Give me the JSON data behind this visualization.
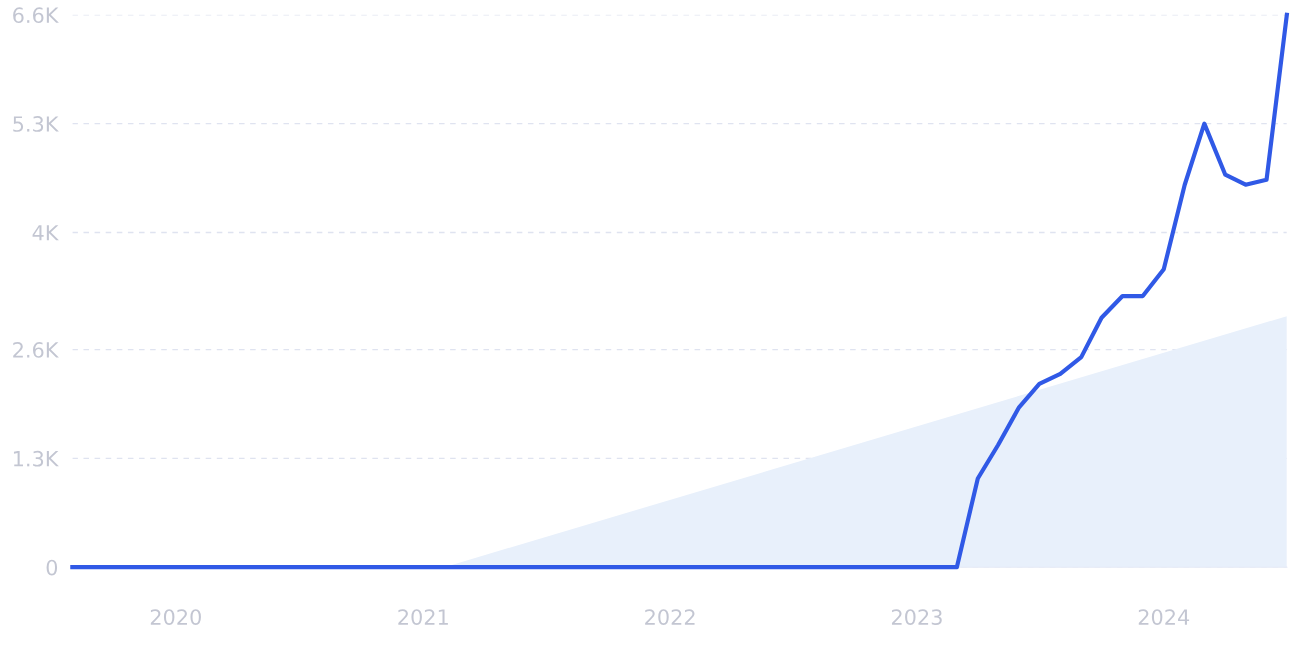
{
  "chart_data": {
    "type": "line",
    "series": [
      {
        "type": "area",
        "color": "#e8f0fb",
        "x": [
          "2021-02",
          "2024-07"
        ],
        "values": [
          0,
          3000
        ]
      },
      {
        "color": "#3059e6",
        "x": [
          "2019-08",
          "2023-03",
          "2023-04",
          "2023-05",
          "2023-06",
          "2023-07",
          "2023-08",
          "2023-09",
          "2023-10",
          "2023-11",
          "2023-12",
          "2024-01",
          "2024-02",
          "2024-03",
          "2024-04",
          "2024-05",
          "2024-06",
          "2024-07"
        ],
        "values": [
          0,
          0,
          1060,
          1460,
          1910,
          2190,
          2310,
          2510,
          2980,
          3240,
          3240,
          3560,
          4570,
          5300,
          4690,
          4570,
          4630,
          6600
        ]
      }
    ],
    "xlim": [
      "2019-08",
      "2024-07"
    ],
    "xticks": [
      {
        "value": "2020",
        "label": "2020"
      },
      {
        "value": "2021",
        "label": "2021"
      },
      {
        "value": "2022",
        "label": "2022"
      },
      {
        "value": "2023",
        "label": "2023"
      },
      {
        "value": "2024",
        "label": "2024"
      }
    ],
    "ylim": [
      0,
      6600
    ],
    "yticks": [
      0,
      {
        "value": 1300,
        "label": "1.3K"
      },
      {
        "value": 2600,
        "label": "2.6K"
      },
      {
        "value": 4000,
        "label": "4K"
      },
      {
        "value": 5300,
        "label": "5.3K"
      },
      {
        "value": 6600,
        "label": "6.6K"
      }
    ],
    "grid": "y",
    "line_style": "solid",
    "marker": "none"
  }
}
